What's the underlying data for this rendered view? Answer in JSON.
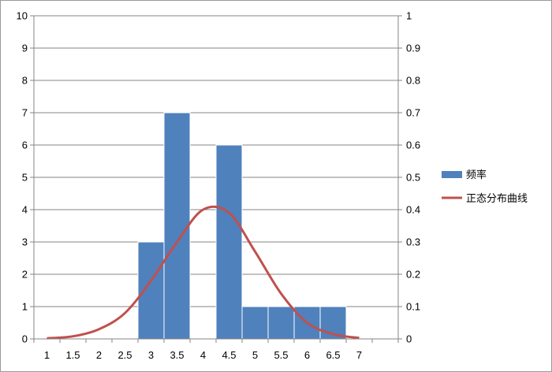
{
  "chart_data": {
    "type": "bar",
    "categories": [
      "1",
      "1.5",
      "2",
      "2.5",
      "3",
      "3.5",
      "4",
      "4.5",
      "5",
      "5.5",
      "6",
      "6.5",
      "7"
    ],
    "series": [
      {
        "name": "频率",
        "type": "bar",
        "axis": "left",
        "color": "#4f81bd",
        "values": [
          0,
          0,
          0,
          0,
          3,
          7,
          0,
          6,
          1,
          1,
          1,
          1,
          0
        ]
      },
      {
        "name": "正态分布曲线",
        "type": "line",
        "axis": "right",
        "color": "#c0504d",
        "x": [
          1,
          1.5,
          2,
          2.5,
          3,
          3.5,
          4,
          4.5,
          5,
          5.5,
          6,
          6.5,
          7
        ],
        "values": [
          0.002,
          0.008,
          0.03,
          0.08,
          0.18,
          0.3,
          0.4,
          0.39,
          0.27,
          0.14,
          0.05,
          0.015,
          0.003
        ]
      }
    ],
    "yaxis_left": {
      "range": [
        0,
        10
      ],
      "ticks": [
        "0",
        "1",
        "2",
        "3",
        "4",
        "5",
        "6",
        "7",
        "8",
        "9",
        "10"
      ]
    },
    "yaxis_right": {
      "range": [
        0,
        1
      ],
      "ticks": [
        "0",
        "0.1",
        "0.2",
        "0.3",
        "0.4",
        "0.5",
        "0.6",
        "0.7",
        "0.8",
        "0.9",
        "1"
      ]
    },
    "grid": true,
    "legend": "right"
  }
}
